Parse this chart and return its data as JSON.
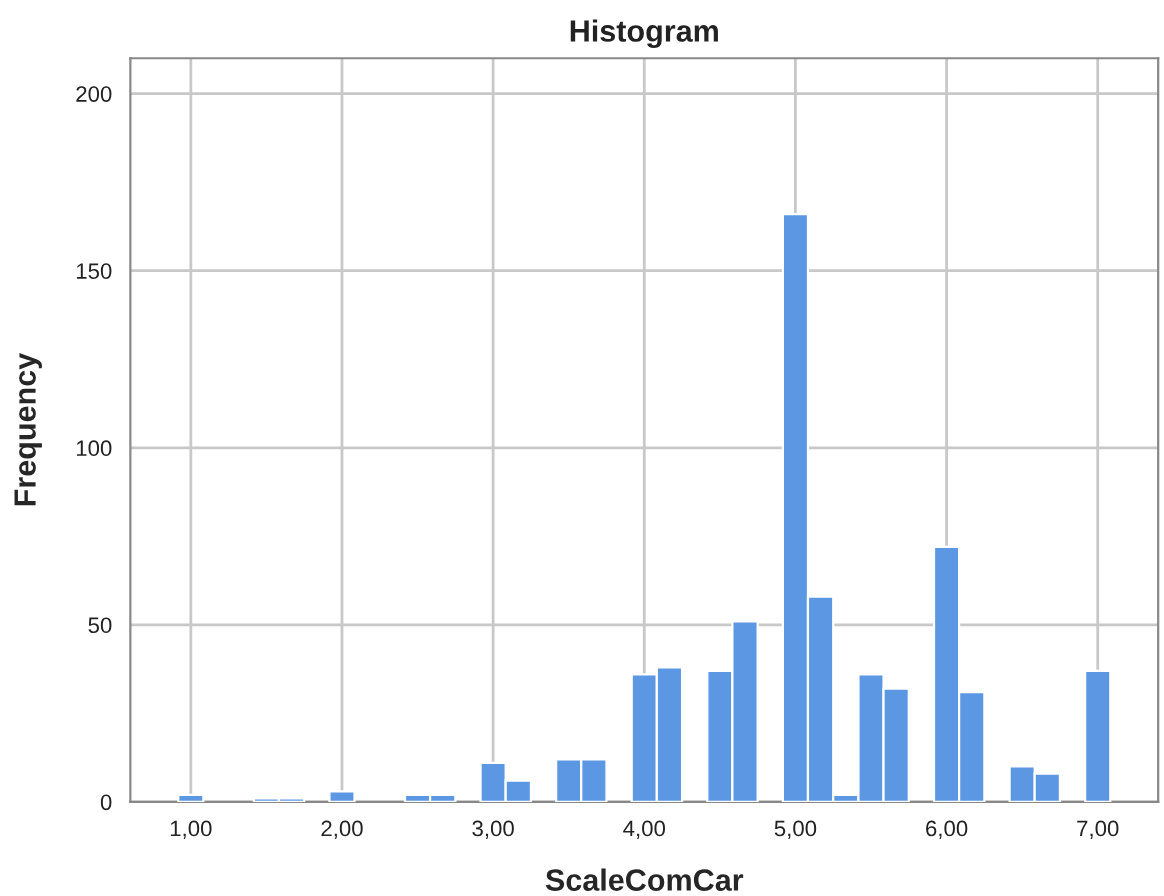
{
  "chart_data": {
    "type": "histogram",
    "title": "Histogram",
    "xlabel": "ScaleComCar",
    "ylabel": "Frequency",
    "bins": [
      0.917,
      1.083,
      1.25,
      1.417,
      1.583,
      1.75,
      1.917,
      2.083,
      2.25,
      2.417,
      2.583,
      2.75,
      2.917,
      3.083,
      3.25,
      3.417,
      3.583,
      3.75,
      3.917,
      4.083,
      4.25,
      4.417,
      4.583,
      4.75,
      4.917,
      5.083,
      5.25,
      5.417,
      5.583,
      5.75,
      5.917,
      6.083,
      6.25,
      6.417,
      6.583,
      6.75,
      6.917,
      7.083
    ],
    "values": [
      2,
      0,
      0,
      1,
      1,
      0,
      3,
      0,
      0,
      2,
      2,
      0,
      11,
      6,
      0,
      12,
      12,
      0,
      36,
      38,
      0,
      37,
      51,
      0,
      166,
      58,
      2,
      36,
      32,
      0,
      72,
      31,
      0,
      10,
      8,
      0,
      37
    ],
    "color": "#5b97e3",
    "xlim": [
      0.6,
      7.4
    ],
    "xticks": [
      {
        "value": 1,
        "label": "1,00"
      },
      {
        "value": 2,
        "label": "2,00"
      },
      {
        "value": 3,
        "label": "3,00"
      },
      {
        "value": 4,
        "label": "4,00"
      },
      {
        "value": 5,
        "label": "5,00"
      },
      {
        "value": 6,
        "label": "6,00"
      },
      {
        "value": 7,
        "label": "7,00"
      }
    ],
    "ylim": [
      0,
      210
    ],
    "yticks": [
      0,
      50,
      100,
      150,
      200
    ],
    "grid": true
  }
}
